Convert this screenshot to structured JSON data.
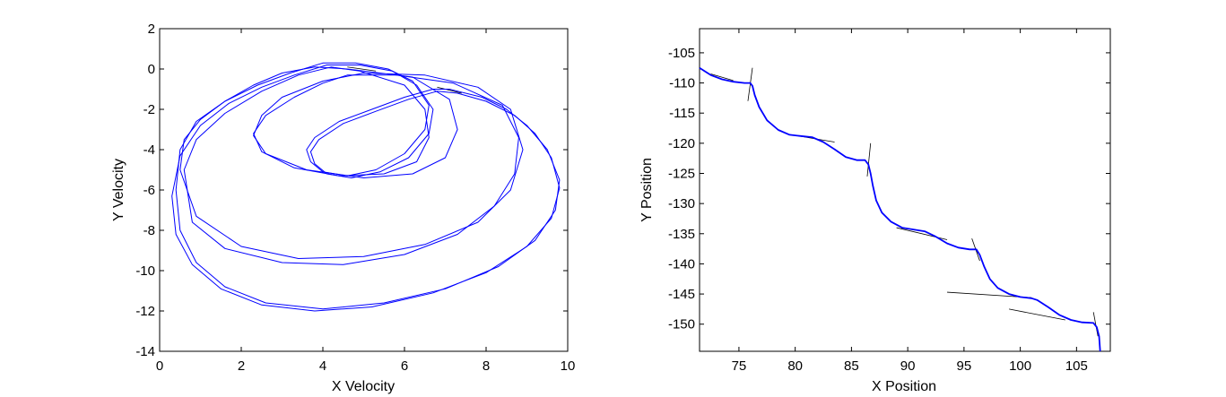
{
  "chart_data": [
    {
      "type": "line",
      "xlabel": "X Velocity",
      "ylabel": "Y Velocity",
      "xlim": [
        0,
        10
      ],
      "ylim": [
        -14,
        2
      ],
      "xticks": [
        "0",
        "2",
        "4",
        "6",
        "8",
        "10"
      ],
      "yticks": [
        "2",
        "0",
        "-2",
        "-4",
        "-6",
        "-8",
        "-10",
        "-12",
        "-14"
      ],
      "xtick_values": [
        0,
        2,
        4,
        6,
        8,
        10
      ],
      "ytick_values": [
        2,
        0,
        -2,
        -4,
        -6,
        -8,
        -10,
        -12,
        -14
      ],
      "grid": false,
      "series_color": "#0000ff",
      "series": [
        {
          "x": [
            4.6,
            6.2,
            7.1,
            7.3,
            7.0,
            6.2,
            5.0,
            3.6,
            2.6,
            2.3,
            2.5,
            3.0,
            4.0,
            5.0,
            6.5,
            7.8,
            8.6,
            8.9,
            8.6,
            7.8,
            6.5,
            5.0,
            3.4,
            2.0,
            0.9,
            0.5,
            0.6,
            1.0,
            1.6,
            2.3,
            3.0,
            3.8,
            4.6
          ],
          "y": [
            0.0,
            -0.4,
            -1.5,
            -3.0,
            -4.4,
            -5.2,
            -5.4,
            -5.0,
            -4.2,
            -3.3,
            -2.3,
            -1.4,
            -0.6,
            -0.2,
            -0.3,
            -0.9,
            -2.0,
            -4.0,
            -6.0,
            -7.6,
            -8.7,
            -9.3,
            -9.4,
            -8.8,
            -7.3,
            -5.0,
            -3.5,
            -2.5,
            -1.6,
            -0.8,
            -0.2,
            0.1,
            0.0
          ]
        },
        {
          "x": [
            4.9,
            6.0,
            6.5,
            6.6,
            6.3,
            5.5,
            4.4,
            3.3,
            2.5,
            2.3,
            2.6,
            3.3,
            4.0,
            4.6,
            5.8,
            7.2,
            8.4,
            8.8,
            8.7,
            8.2,
            7.3,
            6.0,
            4.5,
            3.0,
            1.6,
            0.8,
            0.6,
            0.9,
            1.6,
            2.5,
            3.4,
            4.2,
            4.9
          ],
          "y": [
            -0.1,
            -0.8,
            -2.0,
            -3.4,
            -4.6,
            -5.2,
            -5.3,
            -4.9,
            -4.1,
            -3.2,
            -2.3,
            -1.4,
            -0.7,
            -0.3,
            -0.3,
            -0.7,
            -1.8,
            -3.4,
            -5.2,
            -6.8,
            -8.2,
            -9.2,
            -9.7,
            -9.6,
            -8.9,
            -7.6,
            -5.0,
            -3.5,
            -2.2,
            -1.1,
            -0.3,
            0.1,
            -0.1
          ]
        },
        {
          "x": [
            7.1,
            7.9,
            8.5,
            9.0,
            9.5,
            9.8,
            9.7,
            9.2,
            8.3,
            7.0,
            5.5,
            4.0,
            2.6,
            1.6,
            0.9,
            0.5,
            0.4,
            0.5,
            0.9,
            1.6,
            2.4,
            3.2,
            4.0,
            4.8,
            5.6,
            6.2,
            6.6,
            6.5,
            6.0,
            5.3,
            4.6,
            4.0,
            3.7,
            3.6,
            3.8,
            4.4,
            5.2,
            6.0,
            6.7,
            7.1
          ],
          "y": [
            -1.0,
            -1.4,
            -2.0,
            -2.8,
            -4.0,
            -5.5,
            -7.0,
            -8.5,
            -9.8,
            -10.9,
            -11.6,
            -11.9,
            -11.6,
            -10.8,
            -9.6,
            -8.0,
            -6.0,
            -4.0,
            -2.6,
            -1.6,
            -0.8,
            -0.2,
            0.3,
            0.3,
            0.0,
            -0.6,
            -1.8,
            -3.0,
            -4.2,
            -5.0,
            -5.3,
            -5.1,
            -4.6,
            -4.0,
            -3.4,
            -2.6,
            -2.0,
            -1.4,
            -1.0,
            -1.0
          ]
        },
        {
          "x": [
            7.3,
            8.0,
            8.7,
            9.2,
            9.6,
            9.8,
            9.6,
            9.0,
            8.0,
            6.7,
            5.2,
            3.8,
            2.5,
            1.5,
            0.8,
            0.4,
            0.3,
            0.5,
            1.0,
            1.7,
            2.5,
            3.3,
            4.1,
            4.9,
            5.7,
            6.3,
            6.7,
            6.6,
            6.1,
            5.4,
            4.7,
            4.1,
            3.8,
            3.7,
            3.9,
            4.5,
            5.3,
            6.1,
            6.8,
            7.3
          ],
          "y": [
            -1.2,
            -1.6,
            -2.3,
            -3.2,
            -4.4,
            -5.9,
            -7.4,
            -8.8,
            -10.1,
            -11.1,
            -11.8,
            -12.0,
            -11.7,
            -10.9,
            -9.7,
            -8.2,
            -6.3,
            -4.3,
            -2.8,
            -1.7,
            -0.9,
            -0.3,
            0.2,
            0.2,
            -0.1,
            -0.8,
            -2.0,
            -3.2,
            -4.4,
            -5.1,
            -5.4,
            -5.2,
            -4.7,
            -4.1,
            -3.5,
            -2.7,
            -2.1,
            -1.5,
            -1.1,
            -1.2
          ]
        }
      ],
      "tangents": [
        {
          "x": [
            4.6,
            5.3
          ],
          "y": [
            0.1,
            -0.1
          ]
        },
        {
          "x": [
            6.8,
            7.4
          ],
          "y": [
            -0.9,
            -1.2
          ]
        }
      ]
    },
    {
      "type": "line",
      "xlabel": "X Position",
      "ylabel": "Y Position",
      "xlim": [
        71.5,
        108
      ],
      "ylim": [
        -154.5,
        -101
      ],
      "xticks": [
        "75",
        "80",
        "85",
        "90",
        "95",
        "100",
        "105"
      ],
      "yticks": [
        "-105",
        "-110",
        "-115",
        "-120",
        "-125",
        "-130",
        "-135",
        "-140",
        "-145",
        "-150"
      ],
      "xtick_values": [
        75,
        80,
        85,
        90,
        95,
        100,
        105
      ],
      "ytick_values": [
        -105,
        -110,
        -115,
        -120,
        -125,
        -130,
        -135,
        -140,
        -145,
        -150
      ],
      "grid": false,
      "series_color": "#0000ff",
      "series": [
        {
          "x": [
            71.5,
            72.5,
            73.5,
            74.5,
            75.5,
            76.0,
            76.2,
            76.4,
            76.8,
            77.5,
            78.5,
            79.5,
            80.5,
            81.5,
            82.5,
            83.5,
            84.5,
            85.5,
            86.2,
            86.5,
            86.7,
            86.9,
            87.2,
            87.7,
            88.5,
            89.5,
            90.5,
            91.5,
            92.5,
            93.5,
            94.5,
            95.5,
            96.1,
            96.4,
            96.8,
            97.3,
            98.0,
            99.0,
            100.0,
            101.0,
            101.5,
            102.5,
            103.5,
            104.5,
            105.5,
            106.5,
            106.8,
            107.0,
            107.1
          ],
          "y": [
            -107.5,
            -108.7,
            -109.4,
            -109.8,
            -110.0,
            -110.0,
            -110.5,
            -112.0,
            -114.0,
            -116.2,
            -117.8,
            -118.6,
            -118.8,
            -119.0,
            -119.8,
            -121.0,
            -122.3,
            -122.8,
            -122.8,
            -123.5,
            -125.0,
            -127.0,
            -129.5,
            -131.5,
            -133.0,
            -134.0,
            -134.3,
            -134.6,
            -135.5,
            -136.6,
            -137.3,
            -137.6,
            -137.6,
            -138.5,
            -140.5,
            -142.5,
            -144.0,
            -145.0,
            -145.5,
            -145.7,
            -146.0,
            -147.2,
            -148.5,
            -149.3,
            -149.7,
            -149.8,
            -150.5,
            -152.0,
            -154.5
          ]
        }
      ],
      "tangents": [
        {
          "x": [
            75.8,
            76.2
          ],
          "y": [
            -113.0,
            -107.5
          ]
        },
        {
          "x": [
            72.5,
            74.5
          ],
          "y": [
            -108.5,
            -109.6
          ]
        },
        {
          "x": [
            86.4,
            86.7
          ],
          "y": [
            -125.5,
            -120.0
          ]
        },
        {
          "x": [
            80.0,
            83.5
          ],
          "y": [
            -118.7,
            -119.8
          ]
        },
        {
          "x": [
            89.0,
            93.5
          ],
          "y": [
            -134.0,
            -136.0
          ]
        },
        {
          "x": [
            95.7,
            96.4
          ],
          "y": [
            -135.8,
            -139.5
          ]
        },
        {
          "x": [
            93.5,
            101.0
          ],
          "y": [
            -144.7,
            -145.6
          ]
        },
        {
          "x": [
            99.0,
            104.0
          ],
          "y": [
            -147.5,
            -149.3
          ]
        },
        {
          "x": [
            106.5,
            106.9
          ],
          "y": [
            -148.0,
            -152.0
          ]
        }
      ]
    }
  ]
}
